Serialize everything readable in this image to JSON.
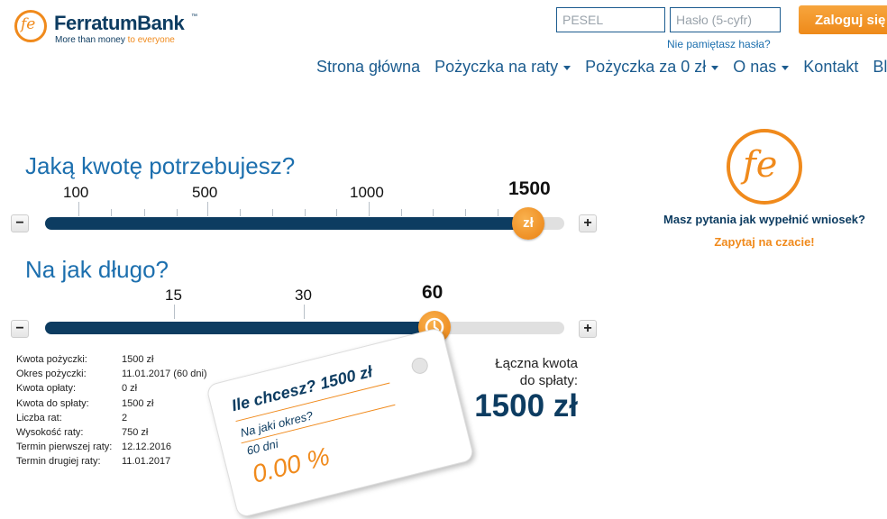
{
  "header": {
    "logo_name": "FerratumBank",
    "logo_tm": "™",
    "tagline_main": "More than money",
    "tagline_accent": "to everyone",
    "pesel_placeholder": "PESEL",
    "password_placeholder": "Hasło (5-cyfr)",
    "login_label": "Zaloguj się",
    "forgot_label": "Nie pamiętasz hasła?"
  },
  "nav": {
    "items": [
      {
        "label": "Strona główna"
      },
      {
        "label": "Pożyczka na raty"
      },
      {
        "label": "Pożyczka za 0 zł"
      },
      {
        "label": "O nas"
      },
      {
        "label": "Kontakt"
      },
      {
        "label": "Blo"
      }
    ]
  },
  "amount": {
    "title": "Jaką kwotę potrzebujesz?",
    "tick_labels": [
      "100",
      "500",
      "1000"
    ],
    "current": "1500",
    "handle_label": "zł",
    "fill_fraction": 0.93,
    "minus": "−",
    "plus": "+"
  },
  "duration": {
    "title": "Na jak długo?",
    "tick_labels": [
      "15",
      "30"
    ],
    "current": "60",
    "fill_fraction": 0.75,
    "minus": "−",
    "plus": "+"
  },
  "summary": {
    "rows": [
      {
        "label": "Kwota pożyczki:",
        "value": "1500 zł"
      },
      {
        "label": "Okres pożyczki:",
        "value": "11.01.2017 (60 dni)"
      },
      {
        "label": "Kwota opłaty:",
        "value": "0 zł"
      },
      {
        "label": "Kwota do spłaty:",
        "value": "1500 zł"
      },
      {
        "label": "Liczba rat:",
        "value": "2"
      },
      {
        "label": "Wysokość raty:",
        "value": "750 zł"
      },
      {
        "label": "Termin pierwszej raty:",
        "value": "12.12.2016"
      },
      {
        "label": "Termin drugiej raty:",
        "value": "11.01.2017"
      }
    ],
    "total_label_1": "Łączna kwota",
    "total_label_2": "do spłaty:",
    "total_value": "1500 zł"
  },
  "tag": {
    "question": "Ile chcesz? 1500 zł",
    "question2": "Na jaki okres?",
    "days": "60 dni",
    "rrso": "0.00 %"
  },
  "help": {
    "question": "Masz pytania jak wypełnić wniosek?",
    "link": "Zapytaj na czacie!"
  },
  "colors": {
    "brand_blue": "#0d3c61",
    "brand_orange": "#f08a1c",
    "link_blue": "#1c6fae"
  }
}
